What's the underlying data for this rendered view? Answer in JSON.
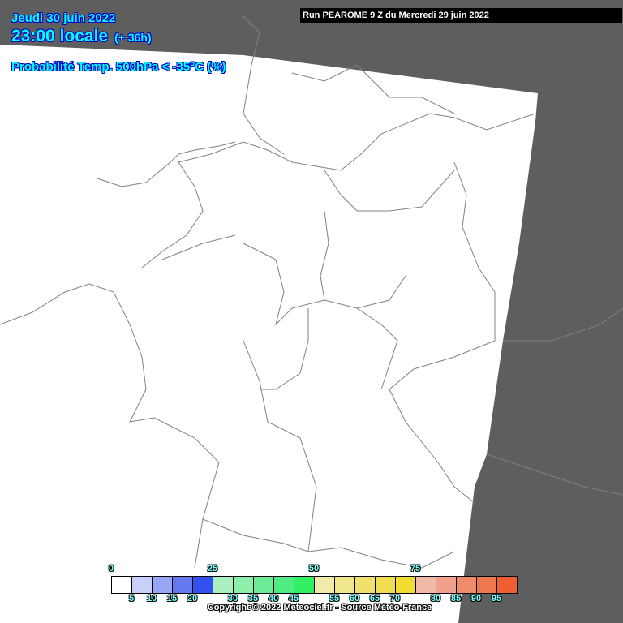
{
  "header": {
    "date": "Jeudi 30 juin 2022",
    "time": "23:00 locale",
    "lead": "(+ 36h)",
    "parameter": "Probabilité Temp. 500hPa < -35°C (%)",
    "run": "Run PEAROME 9 Z du Mercredi 29 juin 2022"
  },
  "legend": {
    "unit": "%",
    "boundaries": [
      0,
      5,
      10,
      15,
      20,
      25,
      30,
      35,
      40,
      45,
      50,
      55,
      60,
      65,
      70,
      75,
      80,
      85,
      90,
      95
    ],
    "colors": [
      "#ffffff",
      "#c8d0fa",
      "#96a5f5",
      "#6478f0",
      "#3250f0",
      "#aaf0be",
      "#8cf0aa",
      "#6eeb96",
      "#50eb82",
      "#32f064",
      "#f0ebaa",
      "#f0e68c",
      "#f0e16e",
      "#f0dc50",
      "#f0dc32",
      "#f0b9aa",
      "#f0a08c",
      "#f08c6e",
      "#f0784f",
      "#f05f32"
    ]
  },
  "copyright": "Copyright © 2022 Meteociel.fr - Source Météo-France",
  "colors": {
    "outside_domain": "#5e5e5e",
    "domain": "#ffffff",
    "borders": "#808080"
  }
}
